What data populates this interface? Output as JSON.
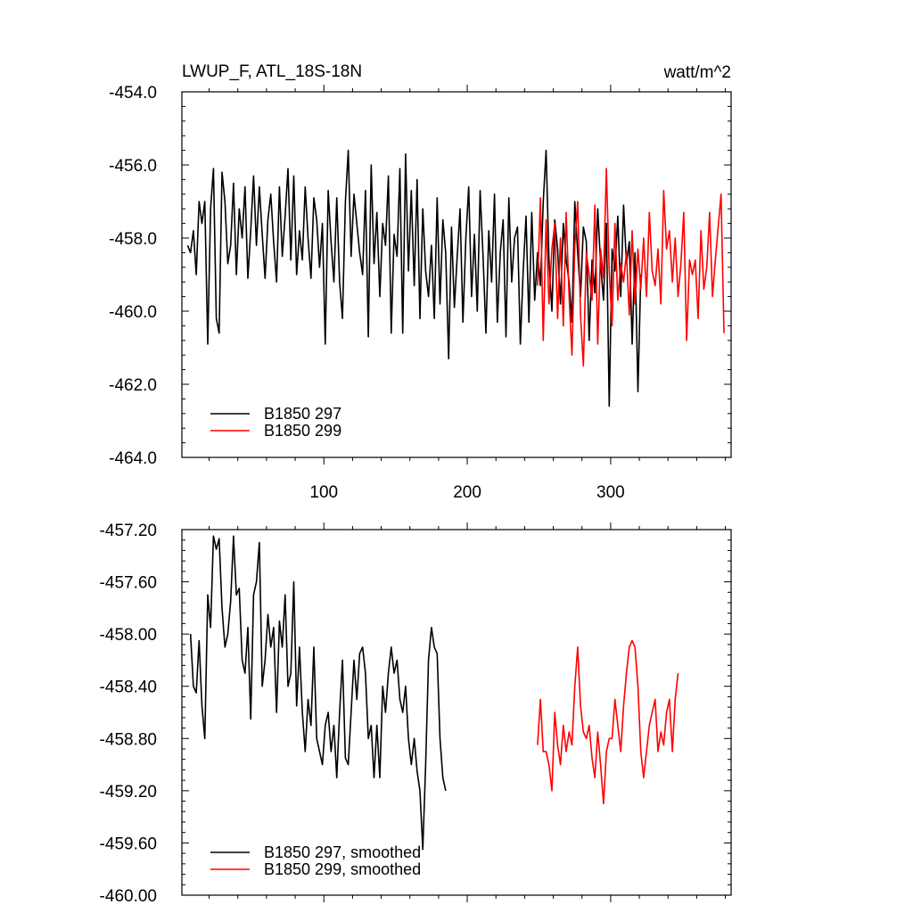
{
  "header": {
    "title": "LWUP_F, ATL_18S-18N",
    "units": "watt/m^2"
  },
  "chart_data": [
    {
      "type": "line",
      "panel": "top",
      "xlim": [
        1,
        384
      ],
      "ylim": [
        -464.0,
        -454.0
      ],
      "x_ticks": [
        100,
        200,
        300
      ],
      "x_tick_labels": [
        "100",
        "200",
        "300"
      ],
      "y_ticks": [
        -454.0,
        -456.0,
        -458.0,
        -460.0,
        -462.0,
        -464.0
      ],
      "y_tick_labels": [
        "-454.0",
        "-456.0",
        "-458.0",
        "-460.0",
        "-462.0",
        "-464.0"
      ],
      "grid": false,
      "legend_position": "bottom-left",
      "series": [
        {
          "name": "B1850 297",
          "color": "#000000",
          "x_start": 5,
          "x_step": 2,
          "values": [
            -458.2,
            -458.4,
            -457.8,
            -459.0,
            -457.0,
            -457.6,
            -457.0,
            -460.9,
            -457.2,
            -456.1,
            -460.2,
            -460.6,
            -456.2,
            -457.0,
            -458.7,
            -458.2,
            -456.5,
            -459.0,
            -457.2,
            -458.0,
            -456.6,
            -459.1,
            -457.8,
            -456.3,
            -458.2,
            -456.6,
            -457.9,
            -459.1,
            -457.5,
            -456.8,
            -458.1,
            -459.2,
            -456.6,
            -458.5,
            -457.4,
            -456.1,
            -458.6,
            -456.3,
            -459.0,
            -457.8,
            -458.6,
            -456.6,
            -458.0,
            -459.1,
            -456.9,
            -457.5,
            -458.8,
            -457.6,
            -460.9,
            -456.7,
            -458.1,
            -459.2,
            -456.9,
            -459.2,
            -460.2,
            -457.0,
            -455.6,
            -458.5,
            -456.8,
            -457.6,
            -458.4,
            -459.0,
            -456.7,
            -460.7,
            -456.0,
            -458.7,
            -457.3,
            -459.6,
            -457.6,
            -458.2,
            -456.3,
            -460.6,
            -457.9,
            -458.5,
            -456.1,
            -460.6,
            -455.7,
            -458.9,
            -456.7,
            -459.3,
            -456.4,
            -460.2,
            -457.2,
            -458.9,
            -459.6,
            -458.2,
            -460.2,
            -456.9,
            -459.8,
            -457.5,
            -458.4,
            -461.3,
            -457.7,
            -459.9,
            -458.5,
            -457.2,
            -460.3,
            -458.0,
            -456.6,
            -459.6,
            -457.9,
            -460.0,
            -456.7,
            -458.5,
            -460.6,
            -457.8,
            -459.2,
            -456.8,
            -460.3,
            -458.4,
            -457.5,
            -460.7,
            -456.9,
            -459.2,
            -458.0,
            -457.7,
            -460.9,
            -458.9,
            -457.4,
            -460.3,
            -457.3,
            -459.7,
            -458.4,
            -459.3,
            -457.0,
            -455.6,
            -458.6,
            -460.0,
            -457.5,
            -458.3,
            -459.8,
            -457.6,
            -458.6,
            -459.2,
            -460.3,
            -457.0,
            -458.4,
            -459.6,
            -457.7,
            -458.1,
            -460.8,
            -458.6,
            -459.5,
            -457.2,
            -458.7,
            -459.7,
            -457.6,
            -462.6,
            -458.3,
            -458.9,
            -457.4,
            -459.6,
            -457.1,
            -458.7,
            -458.1,
            -460.9,
            -458.4,
            -462.2,
            -459.0
          ]
        },
        {
          "name": "B1850 299",
          "color": "#ff0000",
          "x_start": 249,
          "x_step": 2,
          "values": [
            -459.3,
            -456.9,
            -460.8,
            -457.5,
            -459.8,
            -458.3,
            -457.6,
            -460.2,
            -458.0,
            -460.4,
            -457.3,
            -459.6,
            -461.2,
            -458.2,
            -457.0,
            -460.1,
            -461.5,
            -458.4,
            -459.0,
            -459.7,
            -457.1,
            -460.9,
            -458.3,
            -459.1,
            -456.1,
            -458.9,
            -460.4,
            -457.6,
            -459.7,
            -458.7,
            -459.2,
            -458.4,
            -460.1,
            -457.8,
            -459.8,
            -458.3,
            -459.4,
            -458.0,
            -459.6,
            -457.3,
            -458.9,
            -459.3,
            -458.3,
            -459.8,
            -456.7,
            -458.3,
            -457.8,
            -459.2,
            -458.0,
            -459.6,
            -458.7,
            -457.3,
            -460.8,
            -458.6,
            -459.0,
            -458.6,
            -460.2,
            -457.8,
            -459.4,
            -458.8,
            -457.3,
            -459.6,
            -458.6,
            -457.7,
            -456.8,
            -460.6
          ]
        }
      ]
    },
    {
      "type": "line",
      "panel": "bottom",
      "xlim": [
        1,
        384
      ],
      "ylim": [
        -460.0,
        -457.2
      ],
      "x_ticks": [
        100,
        200,
        300
      ],
      "y_ticks": [
        -457.2,
        -457.6,
        -458.0,
        -458.4,
        -458.8,
        -459.2,
        -459.6,
        -460.0
      ],
      "y_tick_labels": [
        "-457.20",
        "-457.60",
        "-458.00",
        "-458.40",
        "-458.80",
        "-459.20",
        "-459.60",
        "-460.00"
      ],
      "grid": false,
      "legend_position": "bottom-left",
      "series": [
        {
          "name": "B1850 297, smoothed",
          "color": "#000000",
          "x_start": 7,
          "x_step": 2,
          "values": [
            -458.0,
            -458.4,
            -458.45,
            -458.05,
            -458.55,
            -458.8,
            -457.7,
            -457.95,
            -457.25,
            -457.35,
            -457.27,
            -457.8,
            -458.1,
            -458.0,
            -457.75,
            -457.25,
            -457.7,
            -457.65,
            -458.2,
            -458.3,
            -457.95,
            -458.65,
            -457.7,
            -457.6,
            -457.3,
            -458.4,
            -458.2,
            -457.85,
            -458.1,
            -457.95,
            -458.6,
            -457.9,
            -458.1,
            -457.7,
            -458.4,
            -458.3,
            -457.6,
            -458.55,
            -458.1,
            -458.6,
            -458.9,
            -458.5,
            -458.7,
            -458.1,
            -458.8,
            -458.9,
            -459.0,
            -458.7,
            -458.6,
            -458.9,
            -458.7,
            -459.1,
            -458.6,
            -458.2,
            -458.95,
            -459.0,
            -458.6,
            -458.2,
            -458.5,
            -458.15,
            -458.1,
            -458.3,
            -458.8,
            -458.7,
            -459.1,
            -458.7,
            -459.1,
            -458.4,
            -458.6,
            -458.3,
            -458.1,
            -458.3,
            -458.2,
            -458.5,
            -458.6,
            -458.4,
            -458.8,
            -459.0,
            -458.8,
            -459.05,
            -459.2,
            -459.65,
            -459.0,
            -458.2,
            -457.95,
            -458.1,
            -458.15,
            -458.8,
            -459.1,
            -459.2
          ]
        },
        {
          "name": "B1850 299, smoothed",
          "color": "#ff0000",
          "x_start": 249,
          "x_step": 2,
          "values": [
            -458.85,
            -458.5,
            -458.9,
            -458.9,
            -459.0,
            -459.2,
            -458.6,
            -458.85,
            -459.0,
            -458.7,
            -458.9,
            -458.75,
            -458.85,
            -458.4,
            -458.1,
            -458.55,
            -458.75,
            -458.8,
            -458.7,
            -458.95,
            -459.1,
            -458.75,
            -459.0,
            -459.3,
            -458.9,
            -458.8,
            -458.8,
            -458.5,
            -458.7,
            -458.9,
            -458.55,
            -458.3,
            -458.1,
            -458.05,
            -458.1,
            -458.4,
            -458.9,
            -459.1,
            -458.9,
            -458.7,
            -458.6,
            -458.5,
            -458.9,
            -458.75,
            -458.85,
            -458.6,
            -458.5,
            -458.9,
            -458.5,
            -458.3
          ]
        }
      ]
    }
  ]
}
